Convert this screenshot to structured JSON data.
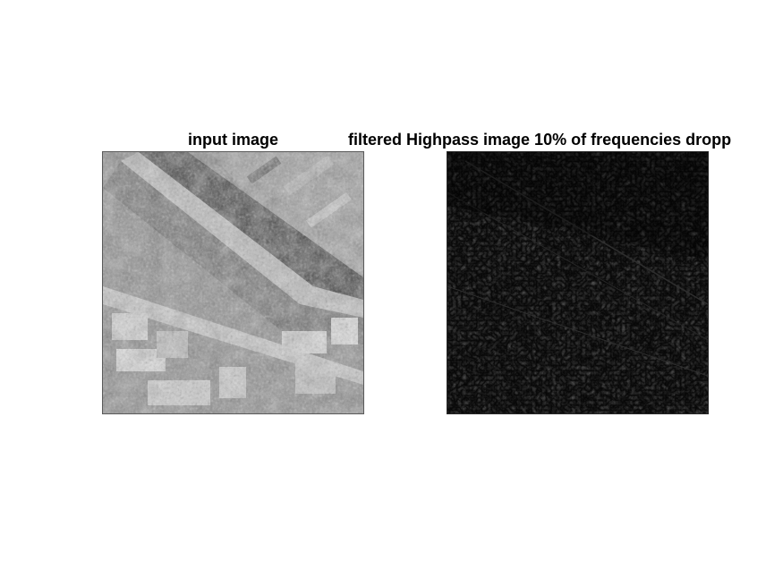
{
  "figure": {
    "left_title": "input image",
    "right_title": "filtered Highpass image 10% of frequencies dropp"
  }
}
